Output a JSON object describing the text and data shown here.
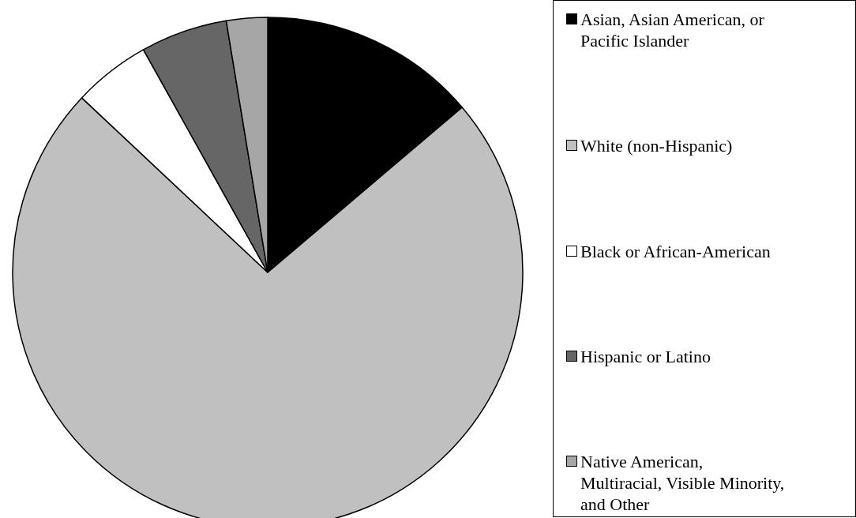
{
  "chart_data": {
    "type": "pie",
    "categories": [
      "Asian, Asian American, or Pacific Islander",
      "White (non-Hispanic)",
      "Black or African-American",
      "Hispanic or Latino",
      "Native American, Multiracial, Visible Minority, and Other"
    ],
    "values": [
      13.8,
      73.2,
      4.9,
      5.5,
      2.6
    ],
    "colors": [
      "#000000",
      "#c0c0c0",
      "#ffffff",
      "#666666",
      "#a6a6a6"
    ],
    "legend": "right"
  }
}
